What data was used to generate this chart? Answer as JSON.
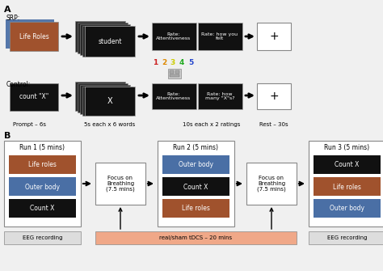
{
  "bg_color": "#f0f0f0",
  "life_roles_color": "#a0522d",
  "outer_body_color": "#4a6fa5",
  "black": "#111111",
  "white": "#ffffff",
  "gray_light": "#dddddd",
  "blue_shadow": "#5577aa",
  "salmon": "#f0a888",
  "num_colors": [
    "#cc2222",
    "#dd8800",
    "#cccc00",
    "#22aa22",
    "#2244cc"
  ],
  "num_labels": [
    "1",
    "2",
    "3",
    "4",
    "5"
  ]
}
